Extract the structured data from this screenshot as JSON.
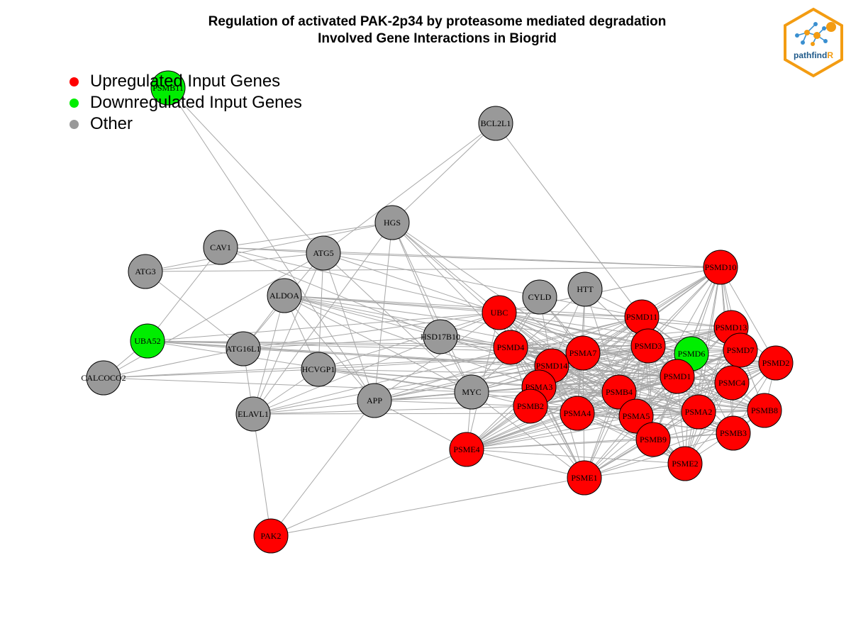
{
  "title": {
    "line1": "Regulation of activated PAK-2p34 by proteasome mediated degradation",
    "line2": "Involved Gene Interactions in Biogrid"
  },
  "legend": {
    "items": [
      {
        "label": "Upregulated Input Genes",
        "color": "#ff0000"
      },
      {
        "label": "Downregulated Input Genes",
        "color": "#00ee00"
      },
      {
        "label": "Other",
        "color": "#999999"
      }
    ]
  },
  "logo": {
    "text_main": "pathfind",
    "text_accent": "R",
    "icon": "network-hexagon-icon"
  },
  "colors": {
    "up": "#ff0000",
    "down": "#00ee00",
    "other": "#999999",
    "edge": "#a8a8a8"
  },
  "nodes": [
    {
      "id": "PSMB11",
      "type": "down"
    },
    {
      "id": "BCL2L1",
      "type": "other"
    },
    {
      "id": "HGS",
      "type": "other"
    },
    {
      "id": "CAV1",
      "type": "other"
    },
    {
      "id": "ATG5",
      "type": "other"
    },
    {
      "id": "ATG3",
      "type": "other"
    },
    {
      "id": "ALDOA",
      "type": "other"
    },
    {
      "id": "CYLD",
      "type": "other"
    },
    {
      "id": "HTT",
      "type": "other"
    },
    {
      "id": "UBC",
      "type": "up"
    },
    {
      "id": "PSMD10",
      "type": "up"
    },
    {
      "id": "PSMD11",
      "type": "up"
    },
    {
      "id": "PSMD13",
      "type": "up"
    },
    {
      "id": "UBA52",
      "type": "down"
    },
    {
      "id": "ATG16L1",
      "type": "other"
    },
    {
      "id": "HSD17B10",
      "type": "other"
    },
    {
      "id": "PSMD4",
      "type": "up"
    },
    {
      "id": "PSMD3",
      "type": "up"
    },
    {
      "id": "PSMD6",
      "type": "down"
    },
    {
      "id": "PSMD7",
      "type": "up"
    },
    {
      "id": "PSMD2",
      "type": "up"
    },
    {
      "id": "PSMA7",
      "type": "up"
    },
    {
      "id": "PSMD14",
      "type": "up"
    },
    {
      "id": "PSMD1",
      "type": "up"
    },
    {
      "id": "CALCOCO2",
      "type": "other"
    },
    {
      "id": "HCVGP1",
      "type": "other"
    },
    {
      "id": "PSMC4",
      "type": "up"
    },
    {
      "id": "PSMA3",
      "type": "up"
    },
    {
      "id": "MYC",
      "type": "other"
    },
    {
      "id": "PSMB4",
      "type": "up"
    },
    {
      "id": "APP",
      "type": "other"
    },
    {
      "id": "ELAVL1",
      "type": "other"
    },
    {
      "id": "PSMB2",
      "type": "up"
    },
    {
      "id": "PSMA4",
      "type": "up"
    },
    {
      "id": "PSMA5",
      "type": "up"
    },
    {
      "id": "PSMA2",
      "type": "up"
    },
    {
      "id": "PSMB8",
      "type": "up"
    },
    {
      "id": "PSMB3",
      "type": "up"
    },
    {
      "id": "PSMB9",
      "type": "up"
    },
    {
      "id": "PSME4",
      "type": "up"
    },
    {
      "id": "PSME2",
      "type": "up"
    },
    {
      "id": "PSME1",
      "type": "up"
    },
    {
      "id": "PAK2",
      "type": "up"
    }
  ]
}
